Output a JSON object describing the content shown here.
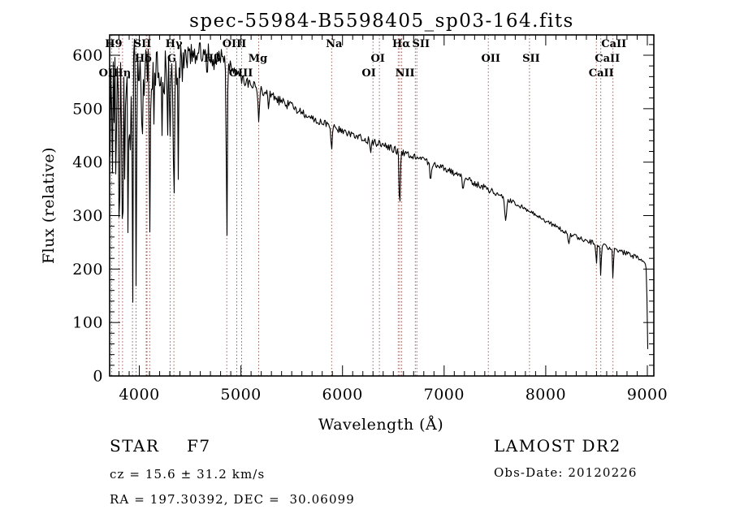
{
  "title": "spec-55984-B5598405_sp03-164.fits",
  "x_axis": {
    "label": "Wavelength (Å)",
    "ticks": [
      4000,
      5000,
      6000,
      7000,
      8000,
      9000
    ],
    "minor_step": 100,
    "range": [
      3708,
      9064
    ]
  },
  "y_axis": {
    "label": "Flux (relative)",
    "ticks": [
      0,
      100,
      200,
      300,
      400,
      500,
      600
    ],
    "minor_step": 20,
    "range": [
      0,
      638
    ]
  },
  "footer": {
    "class_label": "STAR",
    "subclass": "F7",
    "cz": "cz = 15.6 ± 31.2 km/s",
    "radec": "RA = 197.30392, DEC =  30.06099",
    "survey": "LAMOST DR2",
    "obs_date": "Obs-Date: 20120226"
  },
  "colors": {
    "spectrum": "#000000",
    "line_marker": "#8f4a44",
    "frame": "#000000",
    "background": "#ffffff"
  },
  "chart_data": {
    "type": "line",
    "title": "spec-55984-B5598405_sp03-164.fits",
    "xlabel": "Wavelength (Å)",
    "ylabel": "Flux (relative)",
    "xlim": [
      3708,
      9064
    ],
    "ylim": [
      0,
      638
    ],
    "grid": false,
    "continuum": [
      [
        3708,
        430
      ],
      [
        3716,
        520
      ],
      [
        3728,
        558
      ],
      [
        3745,
        574
      ],
      [
        3770,
        584
      ],
      [
        3800,
        590
      ],
      [
        3850,
        588
      ],
      [
        3900,
        582
      ],
      [
        3950,
        576
      ],
      [
        4000,
        572
      ],
      [
        4060,
        576
      ],
      [
        4120,
        576
      ],
      [
        4200,
        573
      ],
      [
        4270,
        567
      ],
      [
        4330,
        570
      ],
      [
        4400,
        586
      ],
      [
        4470,
        596
      ],
      [
        4540,
        604
      ],
      [
        4610,
        607
      ],
      [
        4680,
        602
      ],
      [
        4750,
        598
      ],
      [
        4820,
        592
      ],
      [
        4880,
        580
      ],
      [
        4950,
        568
      ],
      [
        5000,
        556
      ],
      [
        5100,
        545
      ],
      [
        5200,
        534
      ],
      [
        5300,
        523
      ],
      [
        5400,
        513
      ],
      [
        5500,
        503
      ],
      [
        5600,
        493
      ],
      [
        5700,
        483
      ],
      [
        5800,
        474
      ],
      [
        5900,
        466
      ],
      [
        6000,
        459
      ],
      [
        6100,
        451
      ],
      [
        6200,
        444
      ],
      [
        6300,
        438
      ],
      [
        6400,
        431
      ],
      [
        6500,
        424
      ],
      [
        6600,
        417
      ],
      [
        6700,
        410
      ],
      [
        6800,
        403
      ],
      [
        6900,
        395
      ],
      [
        7000,
        388
      ],
      [
        7100,
        380
      ],
      [
        7200,
        371
      ],
      [
        7300,
        361
      ],
      [
        7400,
        352
      ],
      [
        7500,
        342
      ],
      [
        7600,
        333
      ],
      [
        7700,
        323
      ],
      [
        7800,
        313
      ],
      [
        7900,
        302
      ],
      [
        8000,
        291
      ],
      [
        8100,
        280
      ],
      [
        8200,
        269
      ],
      [
        8300,
        260
      ],
      [
        8400,
        253
      ],
      [
        8500,
        247
      ],
      [
        8600,
        241
      ],
      [
        8700,
        235
      ],
      [
        8800,
        229
      ],
      [
        8900,
        221
      ],
      [
        8975,
        214
      ],
      [
        8992,
        198
      ],
      [
        9000,
        90
      ],
      [
        9006,
        28
      ]
    ],
    "absorption_features": [
      {
        "lambda": 3727,
        "depth": 60,
        "width": 5
      },
      {
        "lambda": 3736,
        "depth": 170,
        "width": 5
      },
      {
        "lambda": 3752,
        "depth": 130,
        "width": 5
      },
      {
        "lambda": 3771,
        "depth": 220,
        "width": 5
      },
      {
        "lambda": 3798,
        "depth": 300,
        "width": 6
      },
      {
        "lambda": 3820,
        "depth": 140,
        "width": 4
      },
      {
        "lambda": 3835,
        "depth": 420,
        "width": 6
      },
      {
        "lambda": 3860,
        "depth": 170,
        "width": 4
      },
      {
        "lambda": 3889,
        "depth": 330,
        "width": 6
      },
      {
        "lambda": 3912,
        "depth": 140,
        "width": 4
      },
      {
        "lambda": 3933,
        "depth": 415,
        "width": 6
      },
      {
        "lambda": 3968,
        "depth": 395,
        "width": 7
      },
      {
        "lambda": 4026,
        "depth": 120,
        "width": 4
      },
      {
        "lambda": 4102,
        "depth": 285,
        "width": 7
      },
      {
        "lambda": 4144,
        "depth": 90,
        "width": 4
      },
      {
        "lambda": 4226,
        "depth": 120,
        "width": 5
      },
      {
        "lambda": 4305,
        "depth": 100,
        "width": 8
      },
      {
        "lambda": 4340,
        "depth": 315,
        "width": 7
      },
      {
        "lambda": 4383,
        "depth": 85,
        "width": 4
      },
      {
        "lambda": 4668,
        "depth": 50,
        "width": 5
      },
      {
        "lambda": 4861,
        "depth": 330,
        "width": 7
      },
      {
        "lambda": 5175,
        "depth": 55,
        "width": 10
      },
      {
        "lambda": 5270,
        "depth": 25,
        "width": 6
      },
      {
        "lambda": 5893,
        "depth": 48,
        "width": 8
      },
      {
        "lambda": 6277,
        "depth": 22,
        "width": 8
      },
      {
        "lambda": 6563,
        "depth": 112,
        "width": 8
      },
      {
        "lambda": 6867,
        "depth": 32,
        "width": 10
      },
      {
        "lambda": 7186,
        "depth": 20,
        "width": 10
      },
      {
        "lambda": 7605,
        "depth": 42,
        "width": 12
      },
      {
        "lambda": 8227,
        "depth": 22,
        "width": 8
      },
      {
        "lambda": 8498,
        "depth": 42,
        "width": 6
      },
      {
        "lambda": 8542,
        "depth": 64,
        "width": 6
      },
      {
        "lambda": 8662,
        "depth": 56,
        "width": 6
      }
    ],
    "noise_bands": [
      {
        "until": 3960,
        "amp": 75,
        "spike": 0.2
      },
      {
        "until": 4430,
        "amp": 42,
        "spike": 0.12
      },
      {
        "until": 4900,
        "amp": 20,
        "spike": 0.04
      },
      {
        "until": 5600,
        "amp": 9,
        "spike": 0
      },
      {
        "until": 6600,
        "amp": 7,
        "spike": 0
      },
      {
        "until": 7600,
        "amp": 6,
        "spike": 0
      },
      {
        "until": 9100,
        "amp": 4.5,
        "spike": 0
      }
    ],
    "noise_seed": 20120226,
    "line_markers": [
      {
        "label": "OII",
        "row": 3,
        "lam": 3727,
        "dx": -4
      },
      {
        "label": "H9",
        "row": 1,
        "lam": 3835,
        "dx": -11
      },
      {
        "label": "Hη",
        "row": 3,
        "lam": 3798,
        "dx": 4
      },
      {
        "label": "SII",
        "row": 1,
        "lam": 4072,
        "dx": -5,
        "markers": [
          4068,
          4076
        ]
      },
      {
        "label": "Hδ",
        "row": 2,
        "lam": 4102,
        "dx": -8
      },
      {
        "label": "G",
        "row": 2,
        "lam": 4304,
        "dx": 2
      },
      {
        "label": "Hγ",
        "row": 1,
        "lam": 4340,
        "dx": 0
      },
      {
        "label": "Hβ",
        "row": 2,
        "lam": 4861,
        "dx": -18
      },
      {
        "label": "OIII",
        "row": 1,
        "lam": 4959,
        "dx": -3
      },
      {
        "label": "OIII",
        "row": 3,
        "lam": 5007,
        "dx": -1
      },
      {
        "label": "Mg",
        "row": 2,
        "lam": 5175,
        "dx": -1
      },
      {
        "label": "Na",
        "row": 1,
        "lam": 5893,
        "dx": 3
      },
      {
        "label": "OI",
        "row": 2,
        "lam": 6300,
        "dx": 6
      },
      {
        "label": "OI",
        "row": 3,
        "lam": 6363,
        "dx": -13
      },
      {
        "label": "Hα",
        "row": 1,
        "lam": 6563,
        "dx": 2
      },
      {
        "label": "NII",
        "row": 3,
        "lam": 6583,
        "dx": 4
      },
      {
        "label": "SII",
        "row": 1,
        "lam": 6724,
        "dx": 6,
        "markers": [
          6716,
          6731
        ]
      },
      {
        "label": "OII",
        "row": 2,
        "lam": 7435,
        "dx": 3
      },
      {
        "label": "SII",
        "row": 2,
        "lam": 7840,
        "dx": 2
      },
      {
        "label": "CaII",
        "row": 3,
        "lam": 8498,
        "dx": 6
      },
      {
        "label": "CaII",
        "row": 2,
        "lam": 8542,
        "dx": 8
      },
      {
        "label": "CaII",
        "row": 1,
        "lam": 8662,
        "dx": 1
      }
    ],
    "extra_markers": [
      3933,
      3968,
      6548
    ]
  }
}
